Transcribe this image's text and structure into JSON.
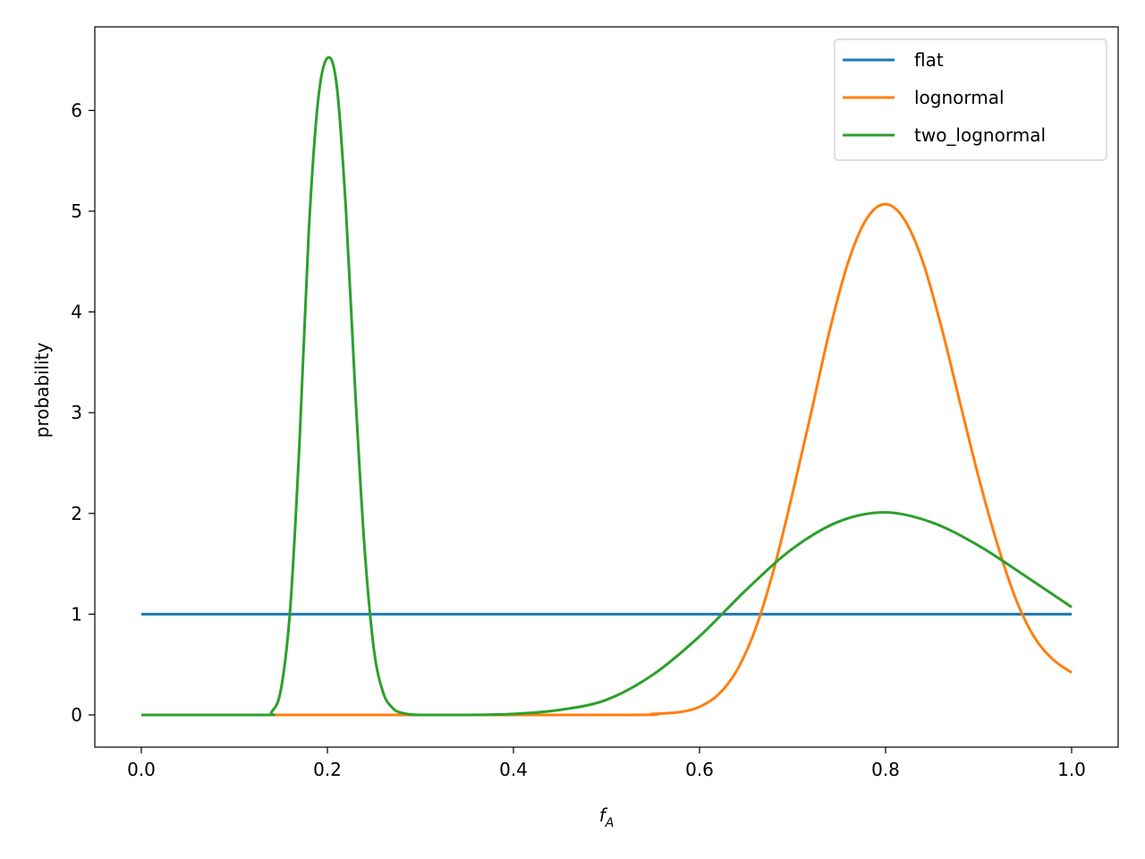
{
  "chart_data": {
    "type": "line",
    "xlabel": "f",
    "xlabel_subscript": "A",
    "ylabel": "probability",
    "xlim": [
      -0.05,
      1.05
    ],
    "ylim": [
      -0.32,
      6.83
    ],
    "xticks": [
      0.0,
      0.2,
      0.4,
      0.6,
      0.8,
      1.0
    ],
    "xtick_labels": [
      "0.0",
      "0.2",
      "0.4",
      "0.6",
      "0.8",
      "1.0"
    ],
    "yticks": [
      0,
      1,
      2,
      3,
      4,
      5,
      6
    ],
    "ytick_labels": [
      "0",
      "1",
      "2",
      "3",
      "4",
      "5",
      "6"
    ],
    "grid": false,
    "legend_position": "top-right",
    "series": [
      {
        "name": "flat",
        "color": "#1f77b4",
        "x": [
          0.0,
          0.1,
          0.2,
          0.3,
          0.4,
          0.5,
          0.6,
          0.7,
          0.8,
          0.9,
          1.0
        ],
        "y": [
          1,
          1,
          1,
          1,
          1,
          1,
          1,
          1,
          1,
          1,
          1
        ]
      },
      {
        "name": "lognormal",
        "color": "#ff7f0e",
        "x": [
          0.0,
          0.5,
          0.55,
          0.58,
          0.6,
          0.62,
          0.64,
          0.66,
          0.68,
          0.7,
          0.72,
          0.74,
          0.76,
          0.78,
          0.8,
          0.82,
          0.84,
          0.86,
          0.88,
          0.9,
          0.92,
          0.94,
          0.96,
          0.98,
          1.0
        ],
        "y": [
          0.0,
          0.0,
          0.01,
          0.03,
          0.08,
          0.2,
          0.44,
          0.85,
          1.45,
          2.2,
          3.0,
          3.82,
          4.5,
          4.93,
          5.07,
          4.92,
          4.5,
          3.85,
          3.1,
          2.36,
          1.7,
          1.15,
          0.77,
          0.55,
          0.42
        ]
      },
      {
        "name": "two_lognormal",
        "color": "#2ca02c",
        "x": [
          0.0,
          0.13,
          0.14,
          0.15,
          0.16,
          0.17,
          0.18,
          0.19,
          0.2,
          0.21,
          0.22,
          0.23,
          0.24,
          0.25,
          0.26,
          0.27,
          0.28,
          0.3,
          0.35,
          0.4,
          0.45,
          0.5,
          0.55,
          0.6,
          0.65,
          0.7,
          0.75,
          0.8,
          0.85,
          0.9,
          0.95,
          1.0
        ],
        "y": [
          0.0,
          0.0,
          0.03,
          0.25,
          1.05,
          2.7,
          4.8,
          6.1,
          6.52,
          6.25,
          5.0,
          3.2,
          1.65,
          0.65,
          0.22,
          0.07,
          0.02,
          0.0,
          0.0,
          0.01,
          0.05,
          0.15,
          0.4,
          0.78,
          1.24,
          1.65,
          1.92,
          2.01,
          1.91,
          1.68,
          1.38,
          1.07
        ]
      }
    ]
  }
}
